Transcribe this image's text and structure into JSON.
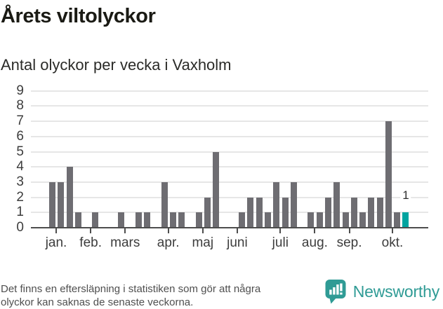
{
  "title": "Årets viltolyckor",
  "subtitle": "Antal olyckor per vecka i Vaxholm",
  "footer": {
    "line1": "Det finns en eftersläpning i statistiken som gör att några",
    "line2": "olyckor kan saknas de senaste veckorna."
  },
  "logo": {
    "text": "Newsworthy",
    "color": "#2f9b95"
  },
  "colors": {
    "bar": "#6e6d72",
    "accent": "#00a4a0",
    "gridline": "#e6e6e6",
    "axis": "#4d4d4d",
    "tick_label": "#3d3d3d",
    "title_text": "#1a1a14",
    "footer_text": "#4f4f4f"
  },
  "chart_data": {
    "type": "bar",
    "title": "Årets viltolyckor",
    "subtitle": "Antal olyckor per vecka i Vaxholm",
    "x_unit": "vecka",
    "weekly_values": [
      3,
      3,
      4,
      1,
      0,
      1,
      0,
      0,
      1,
      0,
      1,
      1,
      0,
      3,
      1,
      1,
      0,
      1,
      2,
      5,
      0,
      0,
      1,
      2,
      2,
      1,
      3,
      2,
      3,
      0,
      1,
      1,
      2,
      3,
      1,
      2,
      1,
      2,
      2,
      7,
      1,
      1
    ],
    "highlight_last": true,
    "highlight_value_label": "1",
    "months": [
      {
        "label": "jan.",
        "week_index": 0
      },
      {
        "label": "feb.",
        "week_index": 4
      },
      {
        "label": "mars",
        "week_index": 8
      },
      {
        "label": "apr.",
        "week_index": 13
      },
      {
        "label": "maj",
        "week_index": 17
      },
      {
        "label": "juni",
        "week_index": 21
      },
      {
        "label": "juli",
        "week_index": 26
      },
      {
        "label": "aug.",
        "week_index": 30
      },
      {
        "label": "sep.",
        "week_index": 34
      },
      {
        "label": "okt.",
        "week_index": 39
      }
    ],
    "y_ticks": [
      0,
      1,
      2,
      3,
      4,
      5,
      6,
      7,
      8,
      9
    ],
    "ylim": [
      0,
      9
    ],
    "grid": true,
    "legend": false
  }
}
